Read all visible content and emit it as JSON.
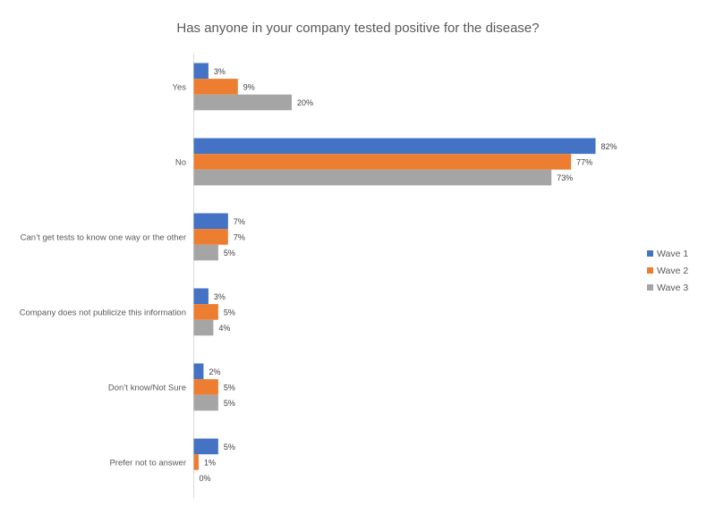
{
  "chart_data": {
    "type": "bar",
    "orientation": "horizontal",
    "title": "Has anyone in your company tested positive for the disease?",
    "categories": [
      "Yes",
      "No",
      "Can’t get tests to know one way or the other",
      "Company does not publicize this information",
      "Don’t know/Not Sure",
      "Prefer not to answer"
    ],
    "series": [
      {
        "name": "Wave 1",
        "color": "#4472C4",
        "values": [
          3,
          82,
          7,
          3,
          2,
          5
        ],
        "labels": [
          "3%",
          "82%",
          "7%",
          "3%",
          "2%",
          "5%"
        ]
      },
      {
        "name": "Wave 2",
        "color": "#ED7D31",
        "values": [
          9,
          77,
          7,
          5,
          5,
          1
        ],
        "labels": [
          "9%",
          "77%",
          "7%",
          "5%",
          "5%",
          "1%"
        ]
      },
      {
        "name": "Wave 3",
        "color": "#A5A5A5",
        "values": [
          20,
          73,
          5,
          4,
          5,
          0
        ],
        "labels": [
          "20%",
          "73%",
          "5%",
          "4%",
          "5%",
          "0%"
        ]
      }
    ],
    "value_unit": "%",
    "xlim": [
      0,
      82
    ],
    "grid": false,
    "legend": "right"
  }
}
